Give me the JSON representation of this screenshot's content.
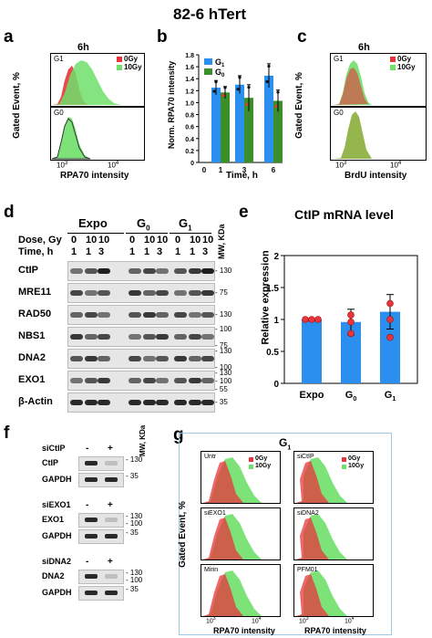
{
  "figure": {
    "title": "82-6 hTert",
    "colors": {
      "red": "#e8343c",
      "green": "#6fe06a",
      "blue": "#2b8ff0",
      "darkgreen": "#3a8f2a",
      "olive": "#8aae3a"
    }
  },
  "panel_a": {
    "letter": "a",
    "time": "6h",
    "ylabel": "Gated Event, %",
    "xlabel": "RPA70 intensity",
    "legend": [
      "0Gy",
      "10Gy"
    ],
    "top_label": "G1",
    "bottom_label": "G0",
    "ticks": [
      "10",
      "3",
      "10",
      "4"
    ]
  },
  "panel_b": {
    "letter": "b",
    "ylabel": "Norm. RPA70 intensity",
    "xlabel": "Time, h",
    "legend": [
      {
        "name": "G1",
        "sub": "1",
        "base": "G"
      },
      {
        "name": "G0",
        "sub": "0",
        "base": "G"
      }
    ],
    "y_ticks": [
      "0",
      "0.2",
      "0.4",
      "0.6",
      "0.8",
      "1.0",
      "1.2",
      "1.4",
      "1.6",
      "1.8"
    ],
    "x_ticks": [
      "0",
      "1",
      "3",
      "6"
    ]
  },
  "panel_c": {
    "letter": "c",
    "time": "6h",
    "ylabel": "Gated Event, %",
    "xlabel": "BrdU intensity",
    "legend": [
      "0Gy",
      "10Gy"
    ],
    "top_label": "G1",
    "bottom_label": "G0"
  },
  "panel_d": {
    "letter": "d",
    "groups": [
      "Expo",
      "G0",
      "G1"
    ],
    "row_dose_label": "Dose, Gy",
    "row_time_label": "Time, h",
    "dose": [
      "0",
      "10",
      "10",
      "0",
      "10",
      "10",
      "0",
      "10",
      "10"
    ],
    "time": [
      "1",
      "1",
      "3",
      "1",
      "1",
      "3",
      "1",
      "1",
      "3"
    ],
    "mw_label": "MW, KDa",
    "blots": [
      {
        "name": "CtIP",
        "mw": [
          "130"
        ]
      },
      {
        "name": "MRE11",
        "mw": [
          "75"
        ]
      },
      {
        "name": "RAD50",
        "mw": [
          "130"
        ]
      },
      {
        "name": "NBS1",
        "mw": [
          "100",
          "75"
        ]
      },
      {
        "name": "DNA2",
        "mw": [
          "130",
          "100"
        ]
      },
      {
        "name": "EXO1",
        "mw": [
          "130",
          "100",
          "55"
        ]
      },
      {
        "name": "β-Actin",
        "mw": [
          "35"
        ]
      }
    ]
  },
  "panel_e": {
    "letter": "e",
    "title": "CtIP mRNA level",
    "ylabel": "Relative expression",
    "y_ticks": [
      "0",
      "0.5",
      "1",
      "1.5",
      "2"
    ],
    "categories": [
      "Expo",
      "G0",
      "G1"
    ]
  },
  "chart_data": {
    "type": "bar",
    "title": "CtIP mRNA level",
    "ylabel": "Relative expression",
    "categories": [
      "Expo",
      "G0",
      "G1"
    ],
    "values": [
      1.0,
      0.96,
      1.12
    ],
    "errors": [
      0.0,
      0.2,
      0.27
    ],
    "points": [
      [
        1.0,
        1.0,
        1.0
      ],
      [
        1.07,
        0.96,
        0.78
      ],
      [
        1.25,
        1.0,
        0.72
      ]
    ],
    "ylim": [
      0,
      2
    ]
  },
  "panel_b_data": {
    "type": "bar",
    "ylim": [
      0,
      1.8
    ],
    "times": [
      "1",
      "3",
      "6"
    ],
    "series": [
      {
        "name": "G1",
        "values": [
          1.25,
          1.3,
          1.45
        ],
        "errors": [
          0.12,
          0.15,
          0.2
        ]
      },
      {
        "name": "G0",
        "values": [
          1.17,
          1.08,
          1.03
        ],
        "errors": [
          0.1,
          0.22,
          0.18
        ]
      }
    ]
  },
  "panel_f": {
    "letter": "f",
    "mw_label": "MW, KDa",
    "groups": [
      {
        "si": "siCtIP",
        "marks": [
          "-",
          "+"
        ],
        "rows": [
          {
            "name": "CtIP",
            "mw": "130"
          },
          {
            "name": "GAPDH",
            "mw": "35"
          }
        ]
      },
      {
        "si": "siEXO1",
        "marks": [
          "-",
          "+"
        ],
        "rows": [
          {
            "name": "EXO1",
            "mw": "130 / 100"
          },
          {
            "name": "GAPDH",
            "mw": "35"
          }
        ]
      },
      {
        "si": "siDNA2",
        "marks": [
          "-",
          "+"
        ],
        "rows": [
          {
            "name": "DNA2",
            "mw": "130 / 100"
          },
          {
            "name": "GAPDH",
            "mw": "35"
          }
        ]
      }
    ],
    "mw_values": [
      "130",
      "35",
      "130",
      "100",
      "35",
      "130",
      "100",
      "35"
    ]
  },
  "panel_g": {
    "letter": "g",
    "title": "G1",
    "ylabel": "Gated Event, %",
    "xlabel": "RPA70 intensity",
    "legend": [
      "0Gy",
      "10Gy"
    ],
    "panels": [
      "Untr",
      "siCtIP",
      "siEXO1",
      "siDNA2",
      "Mirin",
      "PFM01"
    ]
  }
}
